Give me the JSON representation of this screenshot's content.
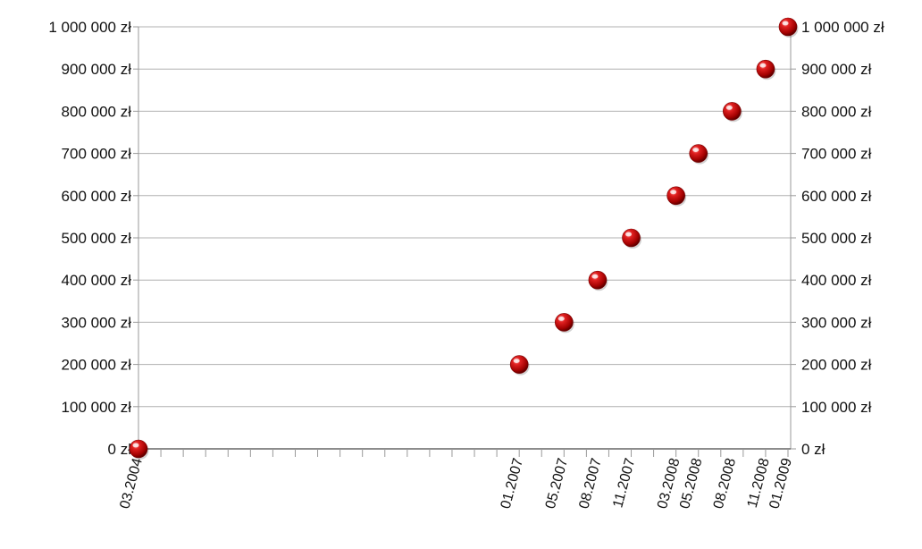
{
  "chart_data": {
    "type": "scatter",
    "title": "",
    "xlabel": "",
    "ylabel": "",
    "currency_suffix": "zł",
    "grid": "horizontal",
    "legend": "none",
    "marker_color": "#cc1111",
    "axis_color": "#999999",
    "grid_color": "#b0b0b0",
    "x_axis_kind": "month-timeline",
    "x_range": [
      "03.2004",
      "01.2009"
    ],
    "ylim": [
      0,
      1000000
    ],
    "y_ticks": [
      {
        "value": 0,
        "label": "0 zł"
      },
      {
        "value": 100000,
        "label": "100 000 zł"
      },
      {
        "value": 200000,
        "label": "200 000 zł"
      },
      {
        "value": 300000,
        "label": "300 000 zł"
      },
      {
        "value": 400000,
        "label": "400 000 zł"
      },
      {
        "value": 500000,
        "label": "500 000 zł"
      },
      {
        "value": 600000,
        "label": "600 000 zł"
      },
      {
        "value": 700000,
        "label": "700 000 zł"
      },
      {
        "value": 800000,
        "label": "800 000 zł"
      },
      {
        "value": 900000,
        "label": "900 000 zł"
      },
      {
        "value": 1000000,
        "label": "1 000 000 zł"
      }
    ],
    "x_tick_labels": [
      "03.2004",
      "01.2007",
      "05.2007",
      "08.2007",
      "11.2007",
      "03.2008",
      "05.2008",
      "08.2008",
      "11.2008",
      "01.2009"
    ],
    "points": [
      {
        "x": "03.2004",
        "y": 0
      },
      {
        "x": "01.2007",
        "y": 200000
      },
      {
        "x": "05.2007",
        "y": 300000
      },
      {
        "x": "08.2007",
        "y": 400000
      },
      {
        "x": "11.2007",
        "y": 500000
      },
      {
        "x": "03.2008",
        "y": 600000
      },
      {
        "x": "05.2008",
        "y": 700000
      },
      {
        "x": "08.2008",
        "y": 800000
      },
      {
        "x": "11.2008",
        "y": 900000
      },
      {
        "x": "01.2009",
        "y": 1000000
      }
    ]
  }
}
